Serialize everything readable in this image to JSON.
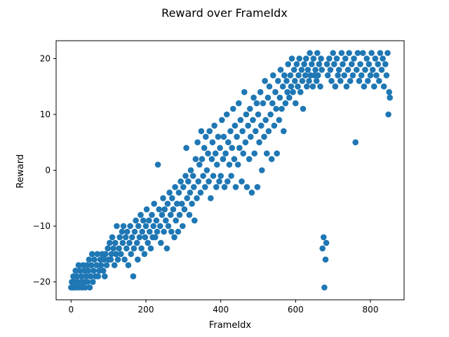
{
  "chart_data": {
    "type": "scatter",
    "title": "Reward over FrameIdx",
    "xlabel": "FrameIdx",
    "ylabel": "Reward",
    "xlim": [
      -40,
      890
    ],
    "ylim": [
      -23.2,
      23.2
    ],
    "xticks": [
      0,
      200,
      400,
      600,
      800
    ],
    "xtick_labels": [
      "0",
      "200",
      "400",
      "600",
      "800"
    ],
    "yticks": [
      -20,
      -10,
      0,
      10,
      20
    ],
    "ytick_labels": [
      "−20",
      "−10",
      "0",
      "10",
      "20"
    ],
    "grid": false,
    "legend": "none",
    "marker_color": "#1f77b4",
    "series": [
      {
        "points": [
          [
            0,
            -21
          ],
          [
            2,
            -20
          ],
          [
            4,
            -21
          ],
          [
            6,
            -19
          ],
          [
            8,
            -21
          ],
          [
            10,
            -20
          ],
          [
            12,
            -18
          ],
          [
            14,
            -21
          ],
          [
            16,
            -19
          ],
          [
            18,
            -20
          ],
          [
            20,
            -17
          ],
          [
            22,
            -21
          ],
          [
            24,
            -18
          ],
          [
            26,
            -20
          ],
          [
            28,
            -19
          ],
          [
            30,
            -21
          ],
          [
            32,
            -17
          ],
          [
            34,
            -20
          ],
          [
            36,
            -18
          ],
          [
            38,
            -21
          ],
          [
            40,
            -19
          ],
          [
            42,
            -17
          ],
          [
            44,
            -20
          ],
          [
            46,
            -18
          ],
          [
            48,
            -16
          ],
          [
            50,
            -21
          ],
          [
            52,
            -19
          ],
          [
            54,
            -17
          ],
          [
            56,
            -15
          ],
          [
            58,
            -20
          ],
          [
            60,
            -18
          ],
          [
            62,
            -16
          ],
          [
            65,
            -19
          ],
          [
            68,
            -17
          ],
          [
            70,
            -15
          ],
          [
            72,
            -19
          ],
          [
            75,
            -18
          ],
          [
            78,
            -16
          ],
          [
            80,
            -17
          ],
          [
            83,
            -15
          ],
          [
            86,
            -18
          ],
          [
            88,
            -16
          ],
          [
            90,
            -19
          ],
          [
            92,
            -15
          ],
          [
            95,
            -17
          ],
          [
            98,
            -14
          ],
          [
            100,
            -16
          ],
          [
            103,
            -13
          ],
          [
            106,
            -16
          ],
          [
            108,
            -15
          ],
          [
            110,
            -12
          ],
          [
            113,
            -14
          ],
          [
            116,
            -17
          ],
          [
            118,
            -13
          ],
          [
            120,
            -15
          ],
          [
            122,
            -10
          ],
          [
            125,
            -16
          ],
          [
            128,
            -14
          ],
          [
            130,
            -12
          ],
          [
            133,
            -15
          ],
          [
            136,
            -11
          ],
          [
            138,
            -13
          ],
          [
            140,
            -10
          ],
          [
            143,
            -16
          ],
          [
            146,
            -12
          ],
          [
            148,
            -14
          ],
          [
            150,
            -11
          ],
          [
            153,
            -17
          ],
          [
            156,
            -13
          ],
          [
            158,
            -10
          ],
          [
            160,
            -15
          ],
          [
            163,
            -12
          ],
          [
            166,
            -19
          ],
          [
            168,
            -14
          ],
          [
            170,
            -11
          ],
          [
            173,
            -9
          ],
          [
            176,
            -13
          ],
          [
            178,
            -16
          ],
          [
            180,
            -10
          ],
          [
            183,
            -12
          ],
          [
            186,
            -8
          ],
          [
            188,
            -14
          ],
          [
            190,
            -11
          ],
          [
            193,
            -9
          ],
          [
            196,
            -15
          ],
          [
            198,
            -12
          ],
          [
            200,
            -10
          ],
          [
            202,
            -7
          ],
          [
            205,
            -13
          ],
          [
            208,
            -9
          ],
          [
            210,
            -11
          ],
          [
            213,
            -14
          ],
          [
            216,
            -8
          ],
          [
            218,
            -12
          ],
          [
            220,
            -10
          ],
          [
            222,
            -6
          ],
          [
            225,
            -12
          ],
          [
            228,
            -9
          ],
          [
            230,
            -11
          ],
          [
            232,
            1
          ],
          [
            235,
            -7
          ],
          [
            238,
            -10
          ],
          [
            240,
            -13
          ],
          [
            243,
            -8
          ],
          [
            246,
            -5
          ],
          [
            248,
            -11
          ],
          [
            250,
            -7
          ],
          [
            253,
            -9
          ],
          [
            256,
            -14
          ],
          [
            258,
            -6
          ],
          [
            260,
            -10
          ],
          [
            263,
            -4
          ],
          [
            266,
            -8
          ],
          [
            268,
            -11
          ],
          [
            270,
            -5
          ],
          [
            273,
            -7
          ],
          [
            276,
            -12
          ],
          [
            278,
            -3
          ],
          [
            280,
            -9
          ],
          [
            283,
            -6
          ],
          [
            286,
            -11
          ],
          [
            288,
            -4
          ],
          [
            290,
            -8
          ],
          [
            293,
            -2
          ],
          [
            296,
            -6
          ],
          [
            298,
            -10
          ],
          [
            300,
            -3
          ],
          [
            303,
            -7
          ],
          [
            306,
            -1
          ],
          [
            308,
            4
          ],
          [
            310,
            -5
          ],
          [
            313,
            -2
          ],
          [
            316,
            -8
          ],
          [
            318,
            -4
          ],
          [
            320,
            0
          ],
          [
            323,
            -6
          ],
          [
            326,
            -1
          ],
          [
            328,
            -3
          ],
          [
            330,
            -9
          ],
          [
            333,
            2
          ],
          [
            336,
            -5
          ],
          [
            338,
            5
          ],
          [
            340,
            -2
          ],
          [
            343,
            1
          ],
          [
            346,
            -4
          ],
          [
            348,
            7
          ],
          [
            350,
            2
          ],
          [
            353,
            -1
          ],
          [
            356,
            4
          ],
          [
            358,
            -3
          ],
          [
            360,
            6
          ],
          [
            363,
            0
          ],
          [
            366,
            3
          ],
          [
            368,
            -2
          ],
          [
            370,
            7
          ],
          [
            373,
            -5
          ],
          [
            376,
            2
          ],
          [
            378,
            5
          ],
          [
            380,
            -1
          ],
          [
            383,
            8
          ],
          [
            386,
            3
          ],
          [
            388,
            -3
          ],
          [
            390,
            1
          ],
          [
            393,
            6
          ],
          [
            396,
            -2
          ],
          [
            398,
            4
          ],
          [
            400,
            -1
          ],
          [
            403,
            9
          ],
          [
            406,
            2
          ],
          [
            408,
            6
          ],
          [
            410,
            -3
          ],
          [
            413,
            3
          ],
          [
            416,
            10
          ],
          [
            418,
            -2
          ],
          [
            420,
            5
          ],
          [
            423,
            1
          ],
          [
            426,
            7
          ],
          [
            428,
            -1
          ],
          [
            430,
            4
          ],
          [
            433,
            11
          ],
          [
            436,
            2
          ],
          [
            438,
            8
          ],
          [
            440,
            -3
          ],
          [
            443,
            6
          ],
          [
            446,
            1
          ],
          [
            448,
            12
          ],
          [
            450,
            4
          ],
          [
            453,
            9
          ],
          [
            456,
            -2
          ],
          [
            458,
            7
          ],
          [
            460,
            3
          ],
          [
            463,
            14
          ],
          [
            466,
            5
          ],
          [
            468,
            10
          ],
          [
            470,
            -3
          ],
          [
            473,
            8
          ],
          [
            476,
            2
          ],
          [
            478,
            11
          ],
          [
            480,
            6
          ],
          [
            483,
            -4
          ],
          [
            486,
            9
          ],
          [
            488,
            13
          ],
          [
            490,
            3
          ],
          [
            493,
            7
          ],
          [
            496,
            12
          ],
          [
            498,
            -3
          ],
          [
            500,
            10
          ],
          [
            503,
            5
          ],
          [
            506,
            14
          ],
          [
            508,
            8
          ],
          [
            510,
            0
          ],
          [
            513,
            12
          ],
          [
            516,
            6
          ],
          [
            518,
            16
          ],
          [
            520,
            9
          ],
          [
            523,
            3
          ],
          [
            526,
            13
          ],
          [
            528,
            7
          ],
          [
            530,
            15
          ],
          [
            533,
            10
          ],
          [
            536,
            2
          ],
          [
            538,
            12
          ],
          [
            540,
            17
          ],
          [
            543,
            8
          ],
          [
            546,
            14
          ],
          [
            548,
            11
          ],
          [
            550,
            3
          ],
          [
            553,
            16
          ],
          [
            556,
            9
          ],
          [
            558,
            13
          ],
          [
            560,
            18
          ],
          [
            563,
            11
          ],
          [
            566,
            15
          ],
          [
            568,
            7
          ],
          [
            570,
            17
          ],
          [
            573,
            12
          ],
          [
            576,
            16
          ],
          [
            578,
            14
          ],
          [
            580,
            19
          ],
          [
            583,
            13
          ],
          [
            586,
            17
          ],
          [
            588,
            15
          ],
          [
            590,
            20
          ],
          [
            593,
            14
          ],
          [
            596,
            18
          ],
          [
            598,
            16
          ],
          [
            600,
            12
          ],
          [
            603,
            19
          ],
          [
            606,
            15
          ],
          [
            608,
            17
          ],
          [
            610,
            20
          ],
          [
            613,
            14
          ],
          [
            616,
            18
          ],
          [
            618,
            16
          ],
          [
            620,
            11
          ],
          [
            623,
            19
          ],
          [
            626,
            17
          ],
          [
            628,
            20
          ],
          [
            630,
            15
          ],
          [
            633,
            18
          ],
          [
            636,
            16
          ],
          [
            638,
            21
          ],
          [
            640,
            17
          ],
          [
            643,
            19
          ],
          [
            646,
            15
          ],
          [
            648,
            20
          ],
          [
            650,
            17
          ],
          [
            653,
            18
          ],
          [
            656,
            16
          ],
          [
            658,
            21
          ],
          [
            660,
            17
          ],
          [
            663,
            19
          ],
          [
            666,
            15
          ],
          [
            668,
            20
          ],
          [
            670,
            18
          ],
          [
            672,
            -14
          ],
          [
            675,
            -12
          ],
          [
            677,
            -21
          ],
          [
            680,
            -16
          ],
          [
            682,
            -13
          ],
          [
            684,
            19
          ],
          [
            686,
            17
          ],
          [
            690,
            20
          ],
          [
            693,
            18
          ],
          [
            696,
            16
          ],
          [
            700,
            21
          ],
          [
            703,
            19
          ],
          [
            706,
            15
          ],
          [
            710,
            20
          ],
          [
            713,
            17
          ],
          [
            716,
            18
          ],
          [
            720,
            16
          ],
          [
            723,
            21
          ],
          [
            726,
            19
          ],
          [
            730,
            17
          ],
          [
            733,
            20
          ],
          [
            736,
            15
          ],
          [
            740,
            18
          ],
          [
            743,
            21
          ],
          [
            746,
            16
          ],
          [
            750,
            19
          ],
          [
            753,
            17
          ],
          [
            756,
            20
          ],
          [
            760,
            5
          ],
          [
            763,
            18
          ],
          [
            766,
            21
          ],
          [
            770,
            16
          ],
          [
            773,
            19
          ],
          [
            776,
            17
          ],
          [
            780,
            21
          ],
          [
            783,
            15
          ],
          [
            786,
            18
          ],
          [
            790,
            20
          ],
          [
            793,
            16
          ],
          [
            796,
            19
          ],
          [
            800,
            17
          ],
          [
            803,
            21
          ],
          [
            806,
            18
          ],
          [
            810,
            15
          ],
          [
            813,
            20
          ],
          [
            816,
            17
          ],
          [
            820,
            19
          ],
          [
            823,
            16
          ],
          [
            826,
            21
          ],
          [
            830,
            18
          ],
          [
            833,
            20
          ],
          [
            836,
            15
          ],
          [
            840,
            19
          ],
          [
            843,
            17
          ],
          [
            846,
            21
          ],
          [
            848,
            10
          ],
          [
            850,
            14
          ],
          [
            852,
            13
          ]
        ]
      }
    ]
  }
}
